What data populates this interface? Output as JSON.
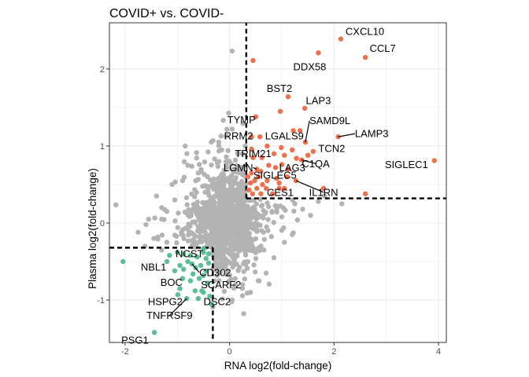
{
  "chart_data": {
    "type": "scatter",
    "title": "COVID+ vs. COVID-",
    "xlabel": "RNA log2(fold-change)",
    "ylabel": "Plasma log2(fold-change)",
    "xlim": [
      -2.3,
      4.15
    ],
    "ylim": [
      -1.55,
      2.6
    ],
    "x_ticks": [
      -2,
      0,
      2,
      4
    ],
    "y_ticks": [
      -1,
      0,
      1,
      2
    ],
    "x_tick_labels": [
      "-2",
      "0",
      "2",
      "4"
    ],
    "y_tick_labels": [
      "-1",
      "0",
      "1",
      "2"
    ],
    "grid": true,
    "colors": {
      "background_points": "#b3b3b3",
      "up": "#f26f4b",
      "down": "#5bbf95",
      "threshold": "#000000",
      "grid_major": "#ebebeb",
      "panel_border": "#333333"
    },
    "thresholds": {
      "up": {
        "x": 0.32,
        "y": 0.32,
        "x_max": 4.15,
        "y_max": 2.6
      },
      "down": {
        "x": -0.32,
        "y": -0.32,
        "x_min": -2.3,
        "y_min": -1.55
      }
    },
    "labeled_genes": [
      {
        "name": "CXCL10",
        "x": 2.13,
        "y": 2.39,
        "group": "up",
        "lx": 2.22,
        "ly": 2.49,
        "anchor": "start"
      },
      {
        "name": "CCL7",
        "x": 2.6,
        "y": 2.15,
        "group": "up",
        "lx": 2.68,
        "ly": 2.27,
        "anchor": "start"
      },
      {
        "name": "DDX58",
        "x": 1.7,
        "y": 2.21,
        "group": "up",
        "lx": 1.85,
        "ly": 2.03,
        "anchor": "end"
      },
      {
        "name": "BST2",
        "x": 1.12,
        "y": 1.64,
        "group": "up",
        "lx": 1.2,
        "ly": 1.75,
        "anchor": "end"
      },
      {
        "name": "LAP3",
        "x": 1.44,
        "y": 1.49,
        "group": "up",
        "lx": 1.7,
        "ly": 1.59,
        "anchor": "middle"
      },
      {
        "name": "SAMD9L",
        "x": 1.45,
        "y": 1.05,
        "group": "up",
        "lx": 1.53,
        "ly": 1.33,
        "anchor": "start",
        "line": true
      },
      {
        "name": "LAMP3",
        "x": 2.08,
        "y": 1.12,
        "group": "up",
        "lx": 2.4,
        "ly": 1.16,
        "anchor": "start",
        "line": true
      },
      {
        "name": "TYMP",
        "x": 0.5,
        "y": 1.38,
        "group": "up",
        "lx": 0.5,
        "ly": 1.34,
        "anchor": "end"
      },
      {
        "name": "RRM2",
        "x": 0.42,
        "y": 1.12,
        "group": "up",
        "lx": 0.45,
        "ly": 1.13,
        "anchor": "end"
      },
      {
        "name": "LGALS9",
        "x": 0.58,
        "y": 1.12,
        "group": "up",
        "lx": 0.68,
        "ly": 1.13,
        "anchor": "start"
      },
      {
        "name": "TCN2",
        "x": 1.6,
        "y": 0.93,
        "group": "up",
        "lx": 1.7,
        "ly": 0.97,
        "anchor": "start"
      },
      {
        "name": "TRIM21",
        "x": 0.42,
        "y": 0.96,
        "group": "up",
        "lx": 0.8,
        "ly": 0.9,
        "anchor": "end"
      },
      {
        "name": "C1QA",
        "x": 1.38,
        "y": 0.82,
        "group": "up",
        "lx": 1.65,
        "ly": 0.77,
        "anchor": "middle",
        "line": true
      },
      {
        "name": "LGMN",
        "x": 0.52,
        "y": 0.7,
        "group": "up",
        "lx": 0.45,
        "ly": 0.72,
        "anchor": "end",
        "line": true
      },
      {
        "name": "LAG3",
        "x": 1.12,
        "y": 0.7,
        "group": "up",
        "lx": 1.2,
        "ly": 0.72,
        "anchor": "middle"
      },
      {
        "name": "SIGLEC5",
        "x": 0.6,
        "y": 0.67,
        "group": "up",
        "lx": 0.87,
        "ly": 0.62,
        "anchor": "middle"
      },
      {
        "name": "SIGLEC1",
        "x": 3.92,
        "y": 0.81,
        "group": "up",
        "lx": 3.8,
        "ly": 0.76,
        "anchor": "end"
      },
      {
        "name": "CES1",
        "x": 0.95,
        "y": 0.45,
        "group": "up",
        "lx": 0.97,
        "ly": 0.4,
        "anchor": "middle"
      },
      {
        "name": "IL1RN",
        "x": 1.27,
        "y": 0.55,
        "group": "up",
        "lx": 1.8,
        "ly": 0.4,
        "anchor": "middle",
        "line": true
      },
      {
        "name": "NCST",
        "x": -0.5,
        "y": -0.33,
        "group": "down",
        "lx": -0.5,
        "ly": -0.4,
        "anchor": "end"
      },
      {
        "name": "NBL1",
        "x": -2.04,
        "y": -0.5,
        "group": "down",
        "lx": -1.7,
        "ly": -0.57,
        "anchor": "start"
      },
      {
        "name": "CD302",
        "x": -0.72,
        "y": -0.53,
        "group": "down",
        "lx": -0.58,
        "ly": -0.64,
        "anchor": "start",
        "line": true
      },
      {
        "name": "BOC",
        "x": -0.88,
        "y": -0.6,
        "group": "down",
        "lx": -0.9,
        "ly": -0.77,
        "anchor": "end"
      },
      {
        "name": "SCARF2",
        "x": -0.5,
        "y": -0.68,
        "group": "down",
        "lx": -0.55,
        "ly": -0.8,
        "anchor": "start"
      },
      {
        "name": "HSPG2",
        "x": -0.99,
        "y": -0.93,
        "group": "down",
        "lx": -0.9,
        "ly": -1.02,
        "anchor": "end"
      },
      {
        "name": "DSC2",
        "x": -0.53,
        "y": -0.88,
        "group": "down",
        "lx": -0.5,
        "ly": -1.02,
        "anchor": "start"
      },
      {
        "name": "TNFRSF9",
        "x": -0.82,
        "y": -0.98,
        "group": "down",
        "lx": -1.15,
        "ly": -1.2,
        "anchor": "middle",
        "line": true
      },
      {
        "name": "PSG1",
        "x": -1.44,
        "y": -1.42,
        "group": "down",
        "lx": -1.55,
        "ly": -1.52,
        "anchor": "end"
      }
    ],
    "other_significant_points": [
      [
        0.45,
        2.11
      ],
      [
        1.22,
        1.2
      ],
      [
        0.97,
        1.45
      ],
      [
        1.35,
        1.2
      ],
      [
        0.72,
        1.0
      ],
      [
        0.99,
        0.98
      ],
      [
        1.2,
        0.95
      ],
      [
        1.05,
        0.88
      ],
      [
        0.62,
        0.85
      ],
      [
        0.85,
        0.9
      ],
      [
        1.5,
        0.88
      ],
      [
        1.28,
        0.84
      ],
      [
        0.88,
        0.72
      ],
      [
        1.0,
        0.76
      ],
      [
        0.75,
        0.75
      ],
      [
        0.45,
        0.85
      ],
      [
        0.55,
        0.6
      ],
      [
        0.48,
        0.55
      ],
      [
        0.4,
        0.52
      ],
      [
        0.63,
        0.5
      ],
      [
        0.7,
        0.45
      ],
      [
        0.52,
        0.45
      ],
      [
        0.37,
        0.43
      ],
      [
        0.44,
        0.38
      ],
      [
        0.6,
        0.38
      ],
      [
        0.82,
        0.38
      ],
      [
        0.72,
        0.55
      ],
      [
        0.9,
        0.58
      ],
      [
        1.1,
        0.6
      ],
      [
        0.95,
        0.52
      ],
      [
        1.05,
        0.45
      ],
      [
        2.6,
        0.38
      ],
      [
        1.8,
        0.45
      ],
      [
        0.42,
        0.65
      ],
      [
        0.35,
        0.6
      ],
      [
        -1.15,
        -0.42
      ],
      [
        -1.0,
        -0.38
      ],
      [
        -0.88,
        -0.4
      ],
      [
        -0.75,
        -0.42
      ],
      [
        -0.62,
        -0.44
      ],
      [
        -0.45,
        -0.46
      ],
      [
        -0.4,
        -0.52
      ],
      [
        -0.55,
        -0.55
      ],
      [
        -0.65,
        -0.58
      ],
      [
        -0.8,
        -0.5
      ],
      [
        -0.95,
        -0.55
      ],
      [
        -1.05,
        -0.62
      ],
      [
        -0.7,
        -0.66
      ],
      [
        -0.58,
        -0.72
      ],
      [
        -0.45,
        -0.62
      ],
      [
        -0.42,
        -0.78
      ],
      [
        -0.75,
        -0.75
      ],
      [
        -0.9,
        -0.72
      ],
      [
        -0.5,
        -0.9
      ],
      [
        -0.38,
        -0.95
      ],
      [
        -0.6,
        -0.98
      ],
      [
        -0.95,
        -0.85
      ],
      [
        -0.35,
        -1.05
      ],
      [
        -0.4,
        -0.4
      ],
      [
        -0.5,
        -0.38
      ],
      [
        -1.2,
        -0.5
      ],
      [
        -0.66,
        -0.88
      ]
    ],
    "background_cloud": {
      "count": 1100,
      "x_mean": -0.05,
      "x_sd": 0.33,
      "y_mean": 0.05,
      "y_sd": 0.3,
      "extra_points": [
        [
          -1.75,
          -0.12
        ],
        [
          -1.6,
          -0.02
        ],
        [
          -1.55,
          0.05
        ],
        [
          -1.3,
          0.2
        ],
        [
          -1.2,
          0.15
        ],
        [
          -1.4,
          0.35
        ],
        [
          -1.1,
          0.5
        ],
        [
          -0.9,
          0.55
        ],
        [
          -0.8,
          0.75
        ],
        [
          -0.6,
          0.65
        ],
        [
          -1.62,
          -0.3
        ],
        [
          -1.45,
          -0.2
        ],
        [
          -1.2,
          -0.25
        ],
        [
          -1.3,
          0.05
        ],
        [
          -1.05,
          0.3
        ],
        [
          -0.85,
          1.0
        ],
        [
          -0.35,
          1.05
        ],
        [
          -0.15,
          0.95
        ],
        [
          0.05,
          1.22
        ],
        [
          -0.05,
          0.72
        ],
        [
          0.25,
          0.9
        ],
        [
          0.15,
          0.68
        ],
        [
          0.3,
          1.0
        ],
        [
          1.0,
          0.08
        ],
        [
          1.25,
          0.25
        ],
        [
          1.4,
          0.18
        ],
        [
          1.7,
          0.28
        ],
        [
          1.55,
          0.1
        ],
        [
          1.82,
          0.35
        ],
        [
          2.15,
          0.25
        ],
        [
          1.05,
          -0.25
        ],
        [
          1.2,
          -0.15
        ],
        [
          0.85,
          -0.45
        ],
        [
          0.7,
          -0.65
        ],
        [
          0.55,
          -0.75
        ],
        [
          0.4,
          -0.9
        ],
        [
          0.25,
          -0.8
        ],
        [
          0.6,
          -0.3
        ],
        [
          0.9,
          0.22
        ],
        [
          1.3,
          0.04
        ],
        [
          -0.2,
          -0.75
        ],
        [
          0.05,
          -1.0
        ],
        [
          -1.3,
          -0.35
        ],
        [
          0.35,
          -0.5
        ],
        [
          0.18,
          -0.3
        ]
      ]
    }
  }
}
